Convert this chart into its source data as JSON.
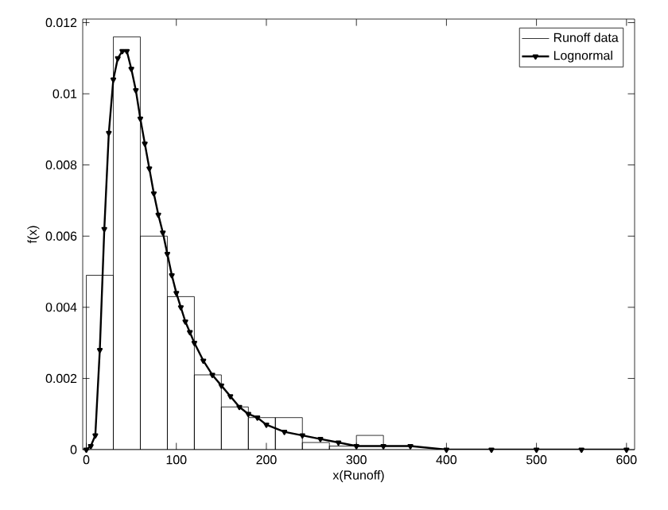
{
  "chart_data": {
    "type": "histogram",
    "xlabel": "x(Runoff)",
    "ylabel": "f(x)",
    "xlim": [
      -4,
      609
    ],
    "ylim": [
      0,
      0.0121
    ],
    "xticks": [
      0,
      100,
      200,
      300,
      400,
      500,
      600
    ],
    "yticks": [
      0,
      0.002,
      0.004,
      0.006,
      0.008,
      0.01,
      0.012
    ],
    "legend": "top right",
    "grid": false,
    "series": [
      {
        "name": "Runoff data",
        "color": "#000000",
        "bins": [
          0,
          30,
          60,
          90,
          120,
          150,
          180,
          210,
          240,
          270,
          300,
          330,
          360
        ],
        "values": [
          0.0049,
          0.0116,
          0.006,
          0.0043,
          0.0021,
          0.0012,
          0.0009,
          0.0009,
          0.0002,
          0.0001,
          0.0004,
          0.0001
        ]
      },
      {
        "type": "line",
        "name": "Lognormal",
        "color": "#000000",
        "marker": "triangle",
        "line_style": "solid",
        "x": [
          0,
          5,
          10,
          15,
          20,
          25,
          30,
          35,
          40,
          45,
          50,
          55,
          60,
          65,
          70,
          75,
          80,
          85,
          90,
          95,
          100,
          105,
          110,
          115,
          120,
          130,
          140,
          150,
          160,
          170,
          180,
          190,
          200,
          220,
          240,
          260,
          280,
          300,
          330,
          360,
          400,
          450,
          500,
          550,
          600
        ],
        "values": [
          0,
          0.0001,
          0.0004,
          0.0028,
          0.0062,
          0.0089,
          0.0104,
          0.011,
          0.0112,
          0.0112,
          0.0107,
          0.0101,
          0.0093,
          0.0086,
          0.0079,
          0.0072,
          0.0066,
          0.0061,
          0.0055,
          0.0049,
          0.0044,
          0.004,
          0.0036,
          0.0033,
          0.003,
          0.0025,
          0.0021,
          0.0018,
          0.0015,
          0.0012,
          0.001,
          0.0009,
          0.0007,
          0.0005,
          0.0004,
          0.0003,
          0.0002,
          0.0001,
          0.0001,
          0.0001,
          0,
          0,
          0,
          0,
          0
        ]
      }
    ]
  }
}
